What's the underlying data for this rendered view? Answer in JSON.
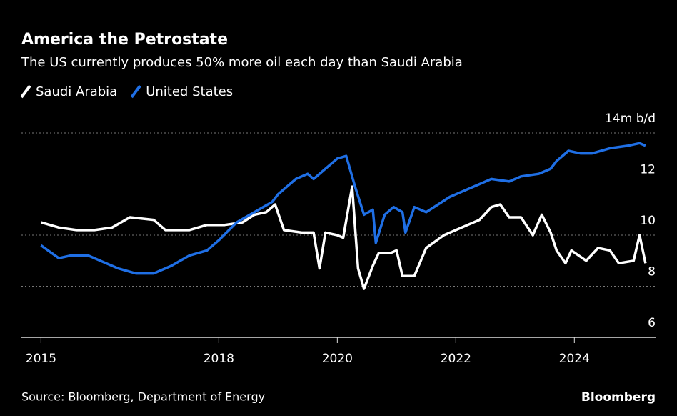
{
  "chart_data": {
    "type": "line",
    "title": "America the Petrostate",
    "subtitle": "The US currently produces 50% more oil each day than Saudi Arabia",
    "source": "Source: Bloomberg, Department of Energy",
    "brand": "Bloomberg",
    "xlim": [
      2014.67,
      2025.37
    ],
    "xticks": [
      2015,
      2018,
      2020,
      2022,
      2024
    ],
    "ylim": [
      6,
      14
    ],
    "yticks": [
      6,
      8,
      10,
      12,
      {
        "value": 14,
        "label": "14m b/d"
      }
    ],
    "grid": true,
    "series": [
      {
        "name": "Saudi Arabia",
        "color": "#ffffff",
        "x": [
          2015.0,
          2015.3,
          2015.6,
          2015.9,
          2016.2,
          2016.5,
          2016.9,
          2017.1,
          2017.5,
          2017.8,
          2018.1,
          2018.4,
          2018.6,
          2018.8,
          2018.95,
          2019.1,
          2019.4,
          2019.6,
          2019.7,
          2019.8,
          2020.0,
          2020.1,
          2020.25,
          2020.35,
          2020.45,
          2020.6,
          2020.7,
          2020.9,
          2021.0,
          2021.1,
          2021.3,
          2021.5,
          2021.8,
          2022.0,
          2022.2,
          2022.4,
          2022.6,
          2022.75,
          2022.9,
          2023.1,
          2023.3,
          2023.45,
          2023.6,
          2023.7,
          2023.85,
          2023.95,
          2024.2,
          2024.4,
          2024.6,
          2024.75,
          2025.0,
          2025.1,
          2025.2
        ],
        "values": [
          10.5,
          10.3,
          10.2,
          10.2,
          10.3,
          10.7,
          10.6,
          10.2,
          10.2,
          10.4,
          10.4,
          10.5,
          10.8,
          10.9,
          11.2,
          10.2,
          10.1,
          10.1,
          8.7,
          10.1,
          10.0,
          9.9,
          11.9,
          8.7,
          7.9,
          8.8,
          9.3,
          9.3,
          9.4,
          8.4,
          8.4,
          9.5,
          10.0,
          10.2,
          10.4,
          10.6,
          11.1,
          11.2,
          10.7,
          10.7,
          10.0,
          10.8,
          10.1,
          9.4,
          8.9,
          9.4,
          9.0,
          9.5,
          9.4,
          8.9,
          9.0,
          10.0,
          8.9
        ]
      },
      {
        "name": "United States",
        "color": "#1f6fe5",
        "x": [
          2015.0,
          2015.3,
          2015.5,
          2015.8,
          2016.0,
          2016.3,
          2016.6,
          2016.9,
          2017.2,
          2017.5,
          2017.8,
          2018.0,
          2018.3,
          2018.6,
          2018.9,
          2019.0,
          2019.3,
          2019.5,
          2019.6,
          2019.8,
          2020.0,
          2020.15,
          2020.3,
          2020.45,
          2020.6,
          2020.65,
          2020.8,
          2020.95,
          2021.1,
          2021.15,
          2021.3,
          2021.5,
          2021.7,
          2021.9,
          2022.0,
          2022.3,
          2022.6,
          2022.9,
          2023.1,
          2023.4,
          2023.6,
          2023.7,
          2023.9,
          2024.1,
          2024.3,
          2024.6,
          2024.9,
          2025.1,
          2025.2
        ],
        "values": [
          9.6,
          9.1,
          9.2,
          9.2,
          9.0,
          8.7,
          8.5,
          8.5,
          8.8,
          9.2,
          9.4,
          9.8,
          10.5,
          10.9,
          11.3,
          11.6,
          12.2,
          12.4,
          12.2,
          12.6,
          13.0,
          13.1,
          11.9,
          10.8,
          11.0,
          9.7,
          10.8,
          11.1,
          10.9,
          10.1,
          11.1,
          10.9,
          11.2,
          11.5,
          11.6,
          11.9,
          12.2,
          12.1,
          12.3,
          12.4,
          12.6,
          12.9,
          13.3,
          13.2,
          13.2,
          13.4,
          13.5,
          13.6,
          13.5
        ]
      }
    ]
  }
}
